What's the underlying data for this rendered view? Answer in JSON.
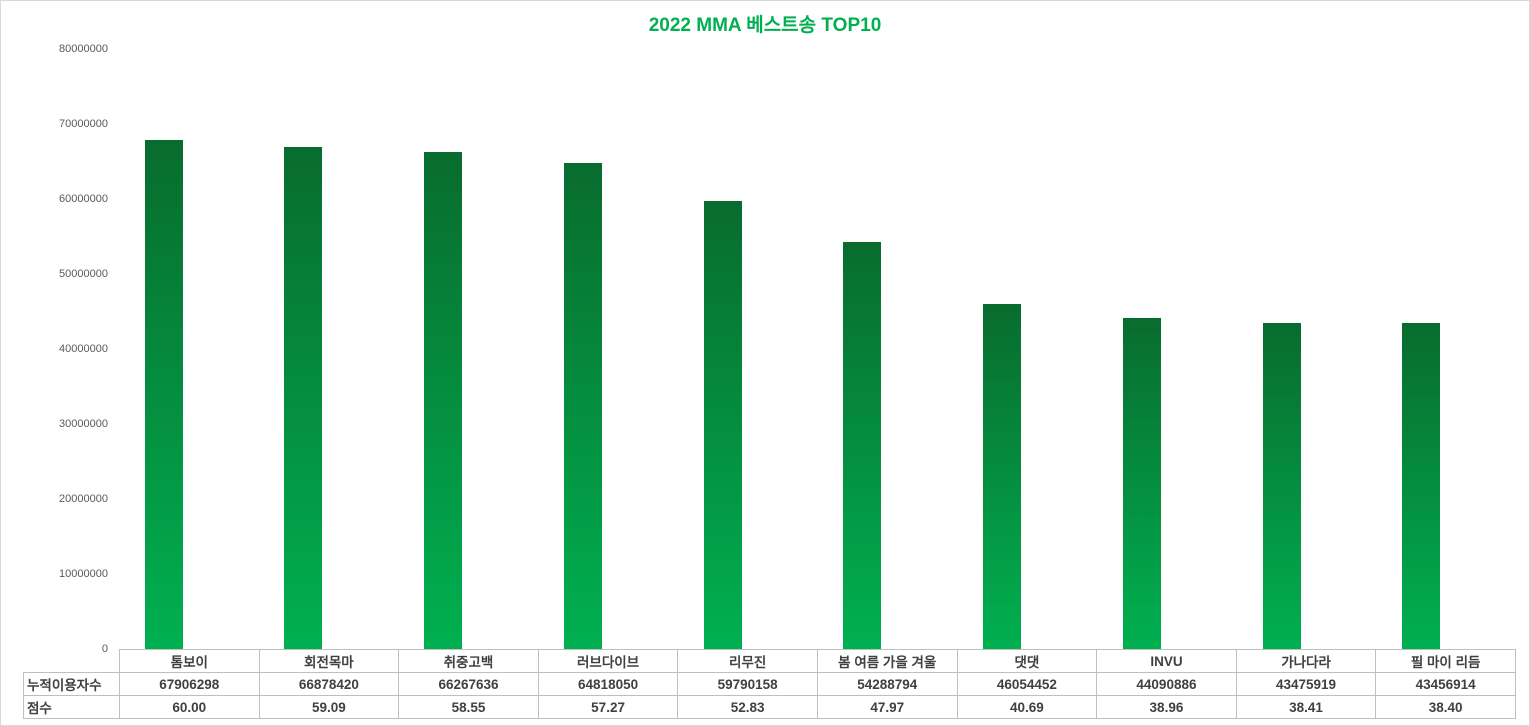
{
  "chart_data": {
    "type": "bar",
    "title": "2022 MMA 베스트송 TOP10",
    "title_color": "#00B050",
    "categories": [
      "톰보이",
      "회전목마",
      "취중고백",
      "러브다이브",
      "리무진",
      "봄 여름 가을 겨울",
      "댓댓",
      "INVU",
      "가나다라",
      "필 마이 리듬"
    ],
    "series": [
      {
        "name": "누적이용자수",
        "values": [
          67906298,
          66878420,
          66267636,
          64818050,
          59790158,
          54288794,
          46054452,
          44090886,
          43475919,
          43456914
        ]
      },
      {
        "name": "점수",
        "values": [
          60.0,
          59.09,
          58.55,
          57.27,
          52.83,
          47.97,
          40.69,
          38.96,
          38.41,
          38.4
        ]
      }
    ],
    "plotted_series": "누적이용자수",
    "ylim": [
      0,
      80000000
    ],
    "y_tick_interval": 10000000,
    "y_tick_labels": [
      "0",
      "10000000",
      "20000000",
      "30000000",
      "40000000",
      "50000000",
      "60000000",
      "70000000",
      "80000000"
    ],
    "grid": false,
    "legend": false,
    "bar_color_top": "#086C2E",
    "bar_color_bottom": "#00B050",
    "data_table": {
      "row_headers": [
        "누적이용자수",
        "점수"
      ],
      "column_headers": [
        "톰보이",
        "회전목마",
        "취중고백",
        "러브다이브",
        "리무진",
        "봄 여름 가을 겨울",
        "댓댓",
        "INVU",
        "가나다라",
        "필 마이 리듬"
      ],
      "rows": [
        [
          "67906298",
          "66878420",
          "66267636",
          "64818050",
          "59790158",
          "54288794",
          "46054452",
          "44090886",
          "43475919",
          "43456914"
        ],
        [
          "60.00",
          "59.09",
          "58.55",
          "57.27",
          "52.83",
          "47.97",
          "40.69",
          "38.96",
          "38.41",
          "38.40"
        ]
      ]
    }
  }
}
